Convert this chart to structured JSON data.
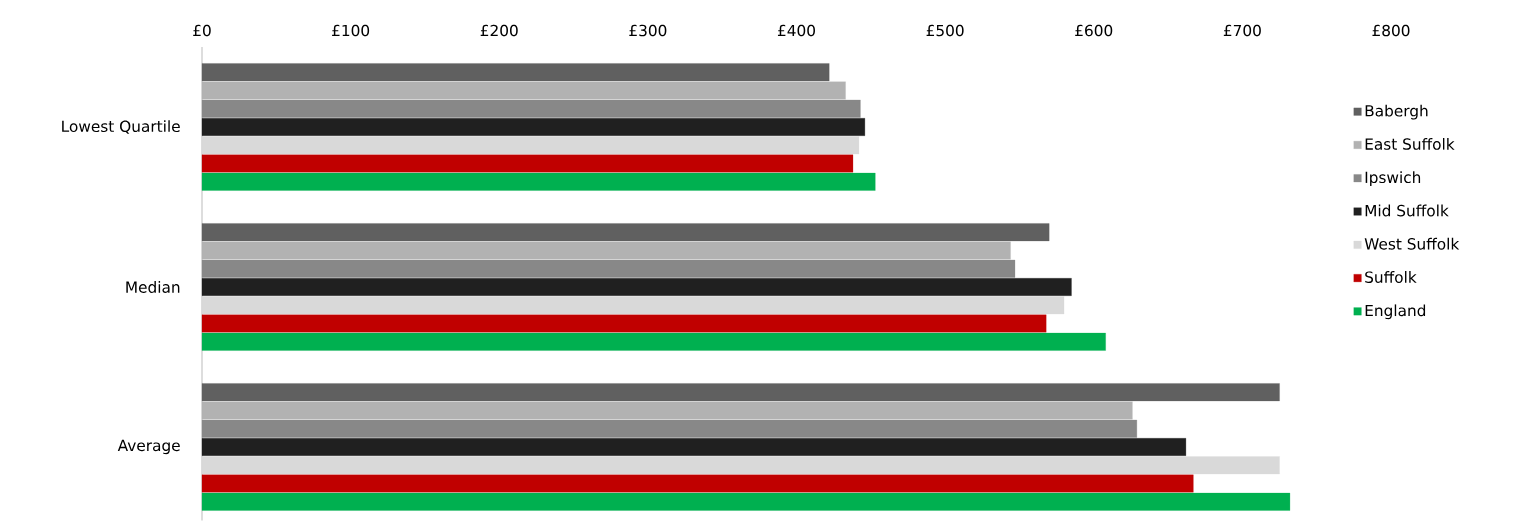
{
  "chart_data": {
    "type": "bar",
    "orientation": "horizontal",
    "categories": [
      "Lowest Quartile",
      "Median",
      "Average"
    ],
    "series": [
      {
        "name": "Babergh",
        "color": "#606060",
        "values": [
          422,
          570,
          725
        ]
      },
      {
        "name": "East Suffolk",
        "color": "#b2b2b2",
        "values": [
          433,
          544,
          626
        ]
      },
      {
        "name": "Ipswich",
        "color": "#888888",
        "values": [
          443,
          547,
          629
        ]
      },
      {
        "name": "Mid Suffolk",
        "color": "#202020",
        "values": [
          446,
          585,
          662
        ]
      },
      {
        "name": "West Suffolk",
        "color": "#d9d9d9",
        "values": [
          442,
          580,
          725
        ]
      },
      {
        "name": "Suffolk",
        "color": "#c00000",
        "values": [
          438,
          568,
          667
        ]
      },
      {
        "name": "England",
        "color": "#00b050",
        "values": [
          453,
          608,
          732
        ]
      }
    ],
    "xlim": [
      0,
      800
    ],
    "xticks": [
      {
        "value": 0,
        "label": "£0"
      },
      {
        "value": 100,
        "label": "£100"
      },
      {
        "value": 200,
        "label": "£200"
      },
      {
        "value": 300,
        "label": "£300"
      },
      {
        "value": 400,
        "label": "£400"
      },
      {
        "value": 500,
        "label": "£500"
      },
      {
        "value": 600,
        "label": "£600"
      },
      {
        "value": 700,
        "label": "£700"
      },
      {
        "value": 800,
        "label": "£800"
      }
    ],
    "legend": "right"
  }
}
